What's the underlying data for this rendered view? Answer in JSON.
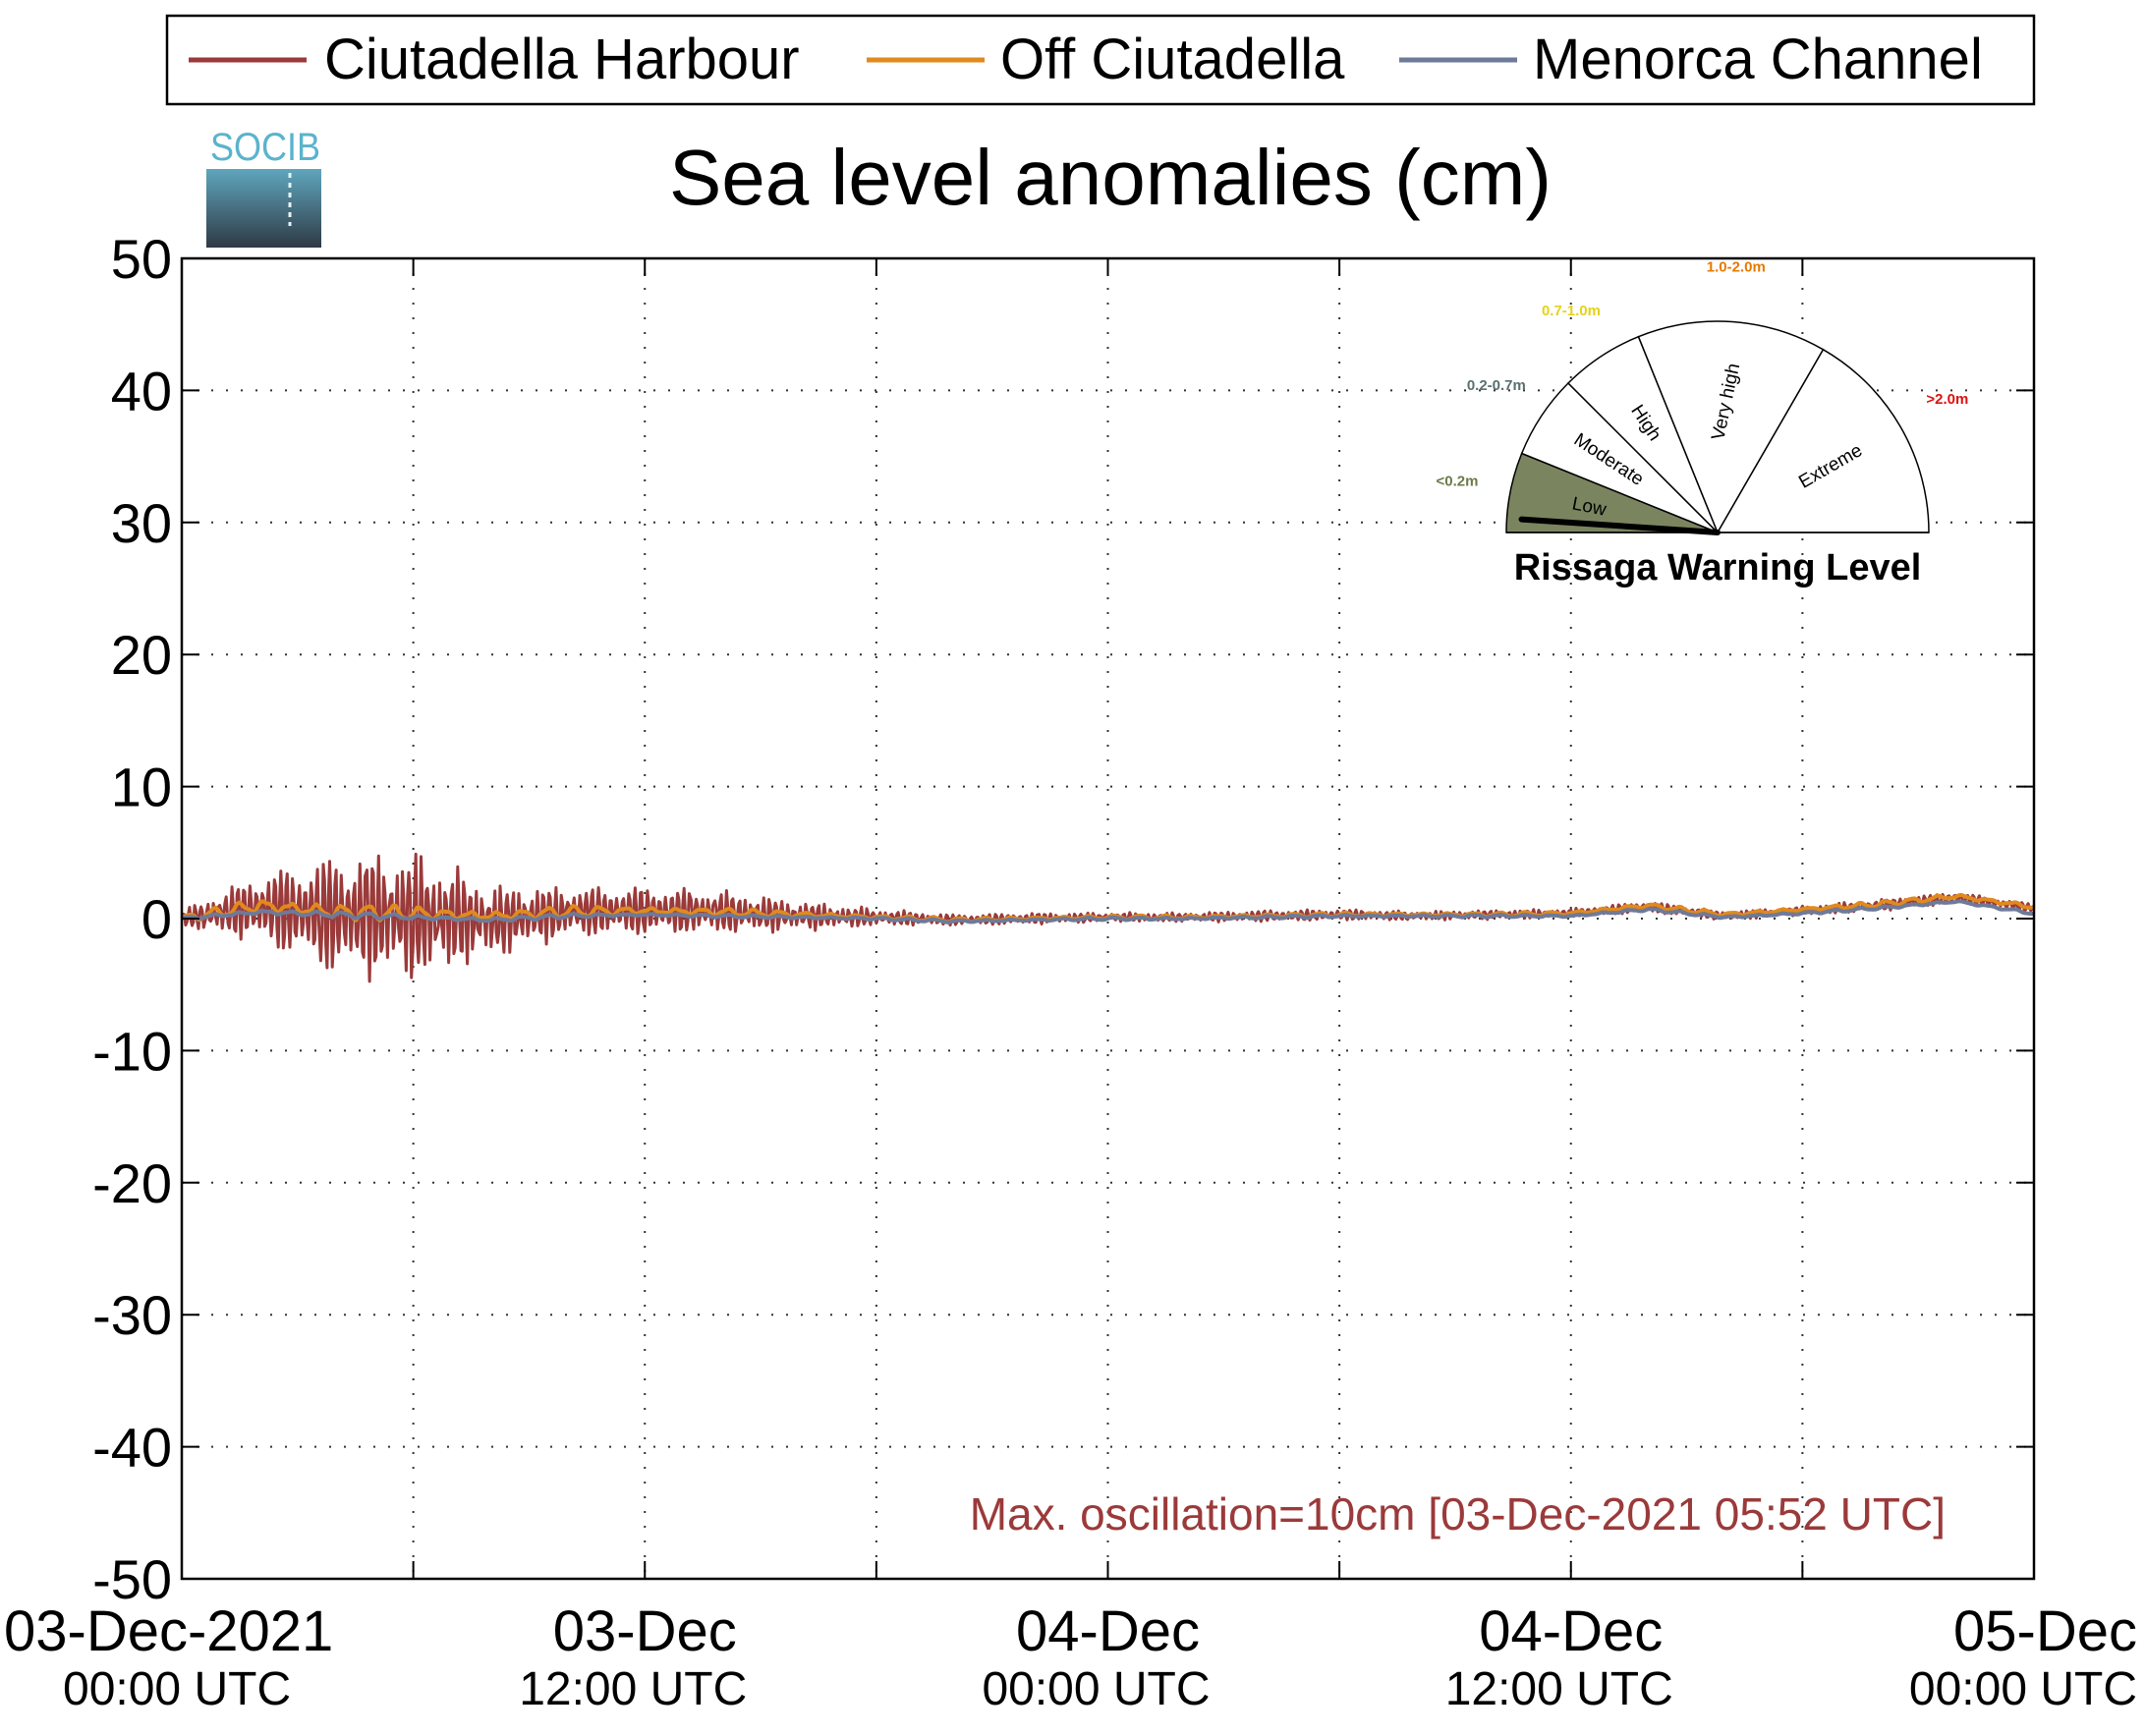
{
  "chart_data": {
    "type": "line",
    "title": "Sea level anomalies (cm)",
    "xlabel": "",
    "ylabel": "",
    "ylim": [
      -50,
      50
    ],
    "yticks": [
      50,
      40,
      30,
      20,
      10,
      0,
      -10,
      -20,
      -30,
      -40,
      -50
    ],
    "xlim": [
      "2021-12-03 00:00",
      "2021-12-05 00:00"
    ],
    "x_tick_labels": [
      {
        "line1": "03-Dec-2021",
        "line2": "00:00 UTC",
        "t": "2021-12-03 00:00"
      },
      {
        "line1": "03-Dec",
        "line2": "12:00 UTC",
        "t": "2021-12-03 12:00"
      },
      {
        "line1": "04-Dec",
        "line2": "00:00 UTC",
        "t": "2021-12-04 00:00"
      },
      {
        "line1": "04-Dec",
        "line2": "12:00 UTC",
        "t": "2021-12-04 12:00"
      },
      {
        "line1": "05-Dec",
        "line2": "00:00 UTC",
        "t": "2021-12-05 00:00"
      }
    ],
    "grid": true,
    "legend_position": "top",
    "annotation": "Max. oscillation=10cm [03-Dec-2021 05:52 UTC]",
    "series": [
      {
        "name": "Ciutadella Harbour",
        "color": "#9b3a3a",
        "x": [
          "2021-12-03 00:00",
          "2021-12-03 02:00",
          "2021-12-03 04:00",
          "2021-12-03 06:00",
          "2021-12-03 08:00",
          "2021-12-03 10:00",
          "2021-12-03 12:00",
          "2021-12-03 14:00",
          "2021-12-03 16:00",
          "2021-12-03 18:00",
          "2021-12-03 20:00",
          "2021-12-03 22:00",
          "2021-12-04 00:00",
          "2021-12-04 02:00",
          "2021-12-04 04:00",
          "2021-12-04 06:00",
          "2021-12-04 08:00",
          "2021-12-04 10:00",
          "2021-12-04 12:00",
          "2021-12-04 14:00",
          "2021-12-04 16:00",
          "2021-12-04 18:00",
          "2021-12-04 20:00",
          "2021-12-04 22:00",
          "2021-12-05 00:00"
        ],
        "values": [
          0,
          0.8,
          0.3,
          0.2,
          -0.2,
          0.5,
          0.6,
          0.5,
          0.2,
          0.1,
          -0.1,
          0,
          0.1,
          0.1,
          0.2,
          0.3,
          0.2,
          0.3,
          0.4,
          0.9,
          0.2,
          0.6,
          1.0,
          1.6,
          0.8
        ],
        "amplitude": [
          0.5,
          2.5,
          4.5,
          4.5,
          2.5,
          1.8,
          1.8,
          1.5,
          1.0,
          0.6,
          0.4,
          0.4,
          0.3,
          0.3,
          0.4,
          0.4,
          0.3,
          0.3,
          0.3,
          0.4,
          0.3,
          0.3,
          0.4,
          0.4,
          0.3
        ]
      },
      {
        "name": "Off Ciutadella",
        "color": "#e08a1e",
        "x": [
          "2021-12-03 00:00",
          "2021-12-03 02:00",
          "2021-12-03 04:00",
          "2021-12-03 06:00",
          "2021-12-03 08:00",
          "2021-12-03 10:00",
          "2021-12-03 12:00",
          "2021-12-03 14:00",
          "2021-12-03 16:00",
          "2021-12-03 18:00",
          "2021-12-03 20:00",
          "2021-12-03 22:00",
          "2021-12-04 00:00",
          "2021-12-04 02:00",
          "2021-12-04 04:00",
          "2021-12-04 06:00",
          "2021-12-04 08:00",
          "2021-12-04 10:00",
          "2021-12-04 12:00",
          "2021-12-04 14:00",
          "2021-12-04 16:00",
          "2021-12-04 18:00",
          "2021-12-04 20:00",
          "2021-12-04 22:00",
          "2021-12-05 00:00"
        ],
        "values": [
          0,
          1.0,
          0.5,
          0.4,
          0.2,
          0.5,
          0.6,
          0.5,
          0.3,
          0.1,
          -0.1,
          0,
          0.1,
          0.1,
          0.2,
          0.3,
          0.3,
          0.3,
          0.4,
          1.0,
          0.3,
          0.7,
          1.1,
          1.7,
          0.9
        ],
        "amplitude": [
          0.2,
          0.6,
          0.6,
          0.5,
          0.4,
          0.4,
          0.3,
          0.3,
          0.2,
          0.2,
          0.15,
          0.15,
          0.15,
          0.15,
          0.15,
          0.15,
          0.15,
          0.15,
          0.15,
          0.2,
          0.15,
          0.15,
          0.2,
          0.2,
          0.2
        ]
      },
      {
        "name": "Menorca Channel",
        "color": "#6e7a99",
        "x": [
          "2021-12-03 00:00",
          "2021-12-03 02:00",
          "2021-12-03 04:00",
          "2021-12-03 06:00",
          "2021-12-03 08:00",
          "2021-12-03 10:00",
          "2021-12-03 12:00",
          "2021-12-03 14:00",
          "2021-12-03 16:00",
          "2021-12-03 18:00",
          "2021-12-03 20:00",
          "2021-12-03 22:00",
          "2021-12-04 00:00",
          "2021-12-04 02:00",
          "2021-12-04 04:00",
          "2021-12-04 06:00",
          "2021-12-04 08:00",
          "2021-12-04 10:00",
          "2021-12-04 12:00",
          "2021-12-04 14:00",
          "2021-12-04 16:00",
          "2021-12-04 18:00",
          "2021-12-04 20:00",
          "2021-12-04 22:00",
          "2021-12-05 00:00"
        ],
        "values": [
          0,
          0.5,
          0.3,
          0.1,
          -0.1,
          0.2,
          0.3,
          0.2,
          0.1,
          0,
          -0.2,
          -0.1,
          0,
          0,
          0.1,
          0.2,
          0.2,
          0.2,
          0.2,
          0.7,
          0.1,
          0.4,
          0.8,
          1.3,
          0.4
        ],
        "amplitude": [
          0.1,
          0.2,
          0.2,
          0.2,
          0.15,
          0.15,
          0.1,
          0.1,
          0.1,
          0.1,
          0.1,
          0.1,
          0.1,
          0.1,
          0.1,
          0.1,
          0.1,
          0.1,
          0.1,
          0.1,
          0.1,
          0.1,
          0.1,
          0.1,
          0.1
        ]
      }
    ]
  },
  "logo": {
    "text": "SOCIB",
    "color": "#5bb3cc"
  },
  "gauge": {
    "title": "Rissaga Warning Level",
    "current_level": "Low",
    "needle_value": 0.1,
    "segments": [
      {
        "name": "Low",
        "range": "<0.2m",
        "color": "#7a8560",
        "range_color": "#6b7a4a"
      },
      {
        "name": "Moderate",
        "range": "0.2-0.7m",
        "color": "#ffffff",
        "range_color": "#5a7070"
      },
      {
        "name": "High",
        "range": "0.7-1.0m",
        "color": "#ffffff",
        "range_color": "#e6d21a"
      },
      {
        "name": "Very high",
        "range": "1.0-2.0m",
        "color": "#ffffff",
        "range_color": "#e57a00"
      },
      {
        "name": "Extreme",
        "range": ">2.0m",
        "color": "#ffffff",
        "range_color": "#dd1111"
      }
    ]
  }
}
